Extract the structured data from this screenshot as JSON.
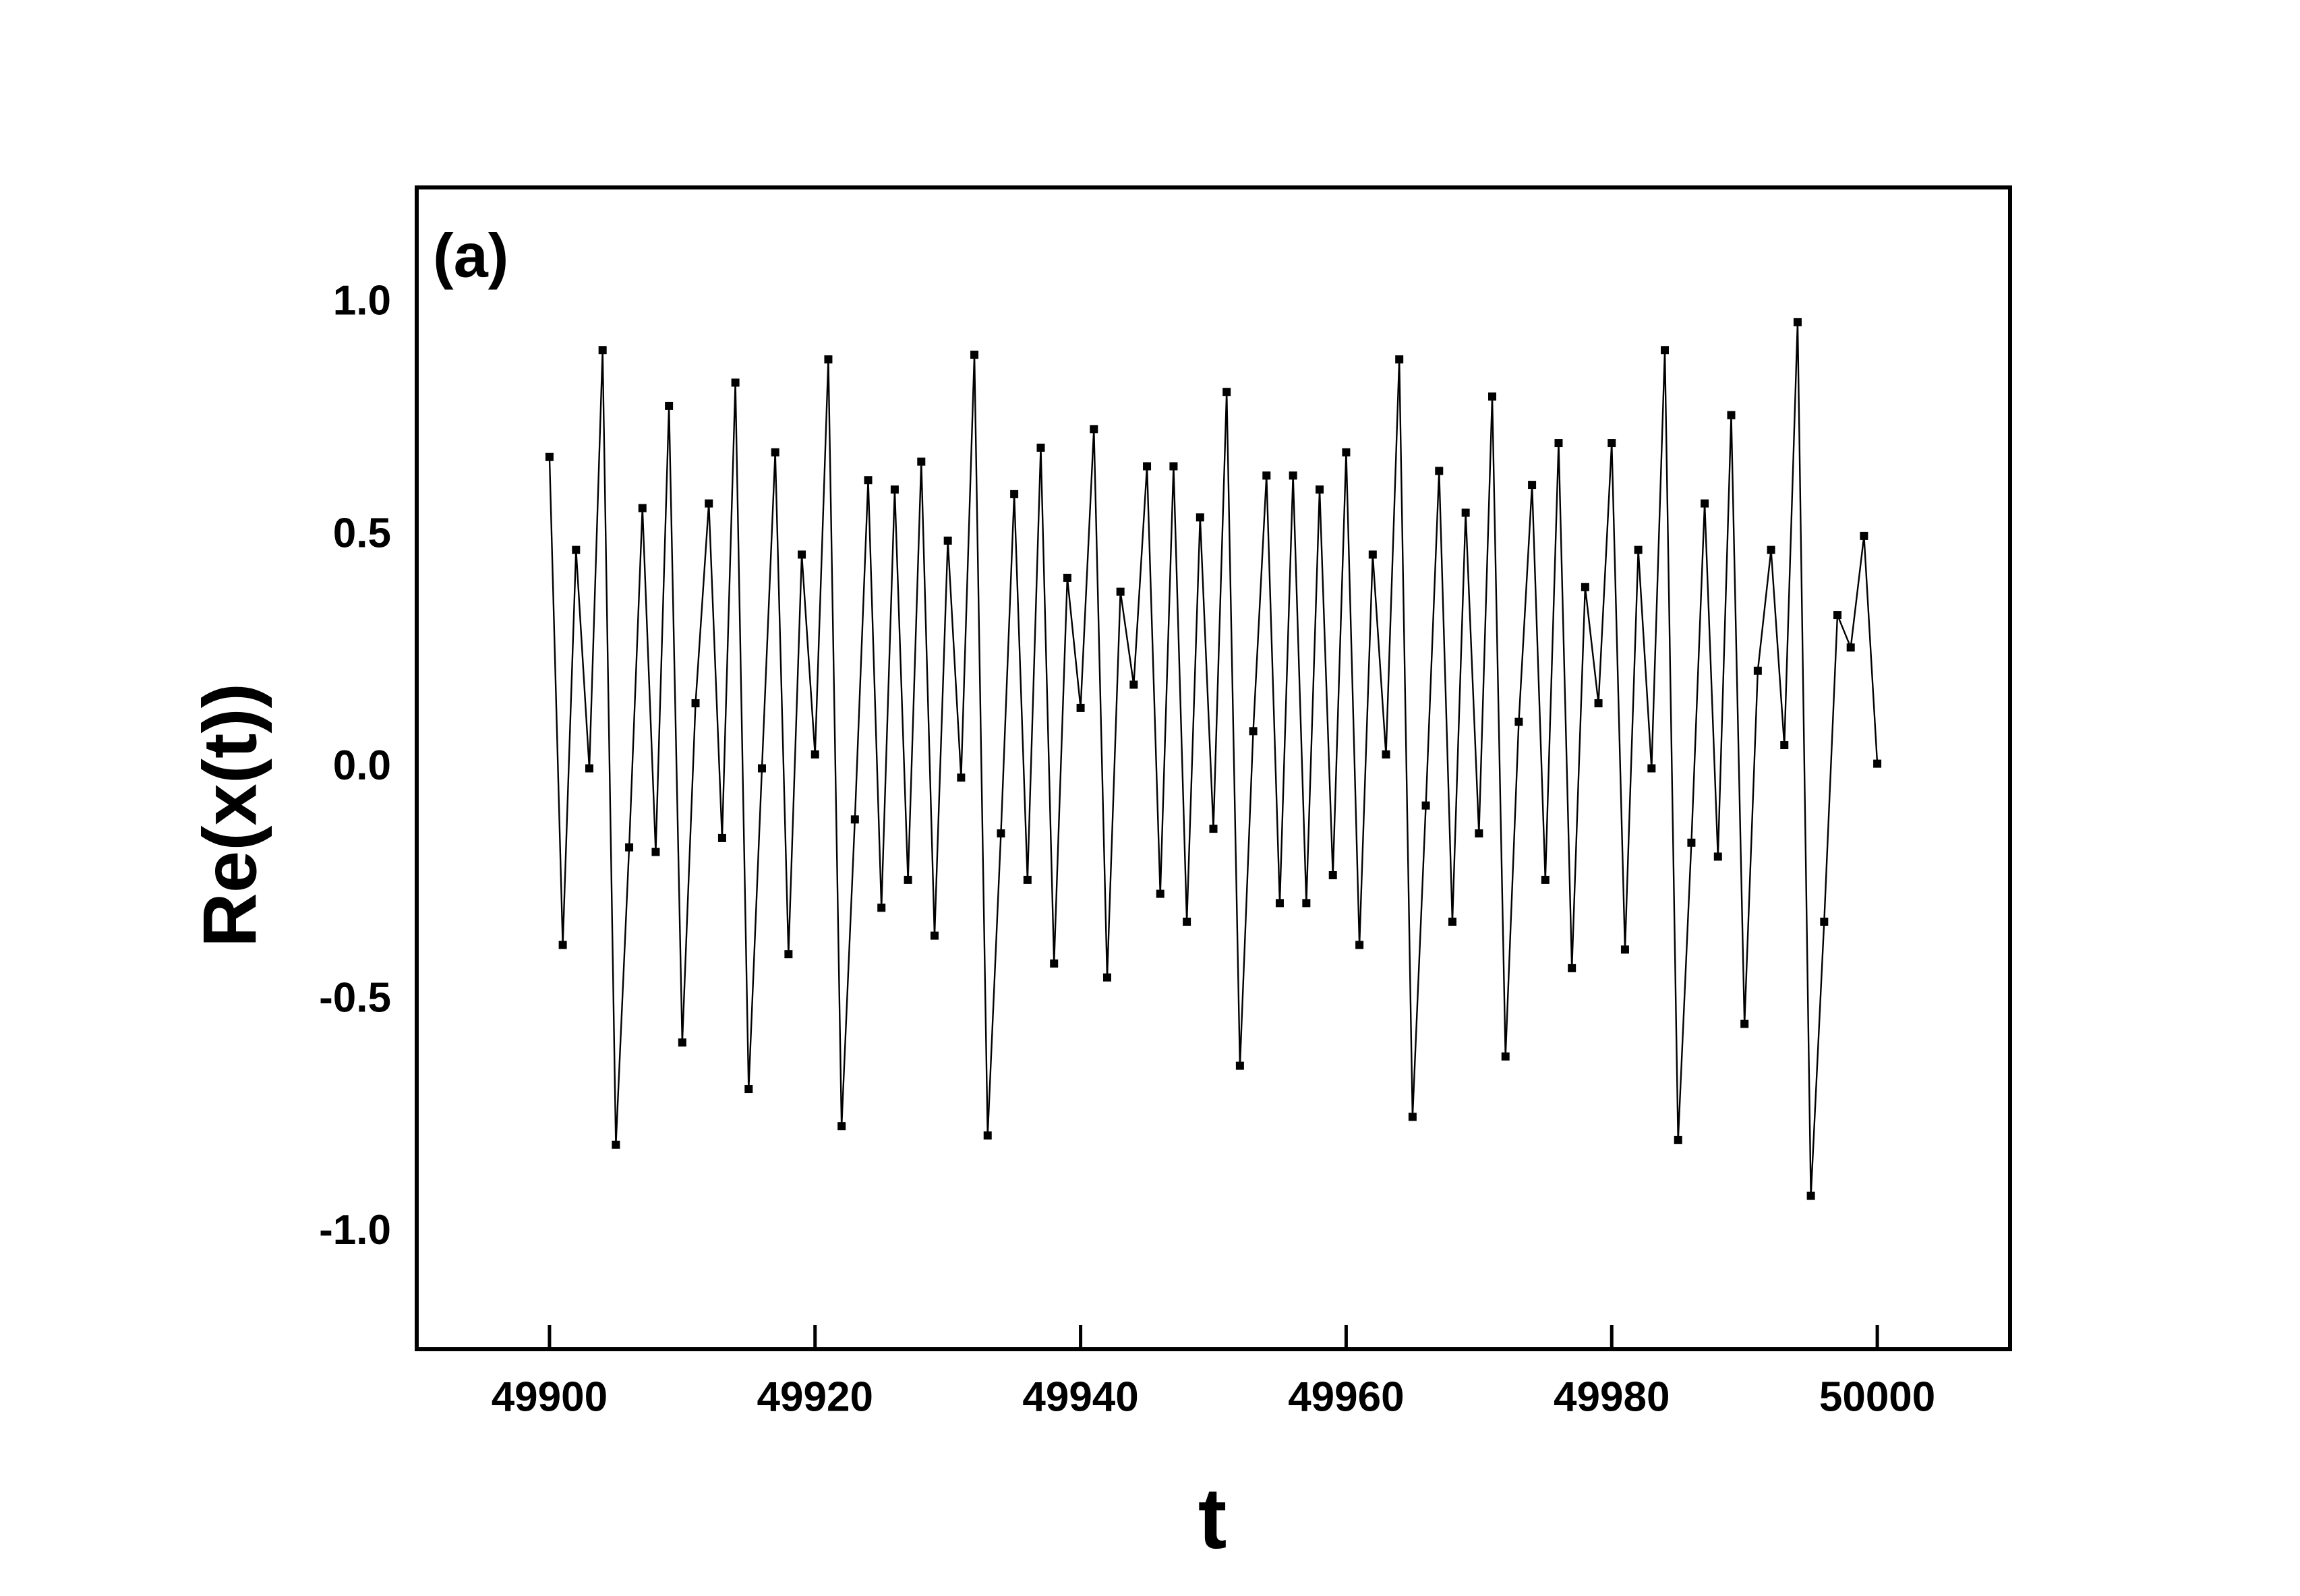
{
  "chart_data": {
    "type": "line",
    "annotation": "(a)",
    "xlabel": "t",
    "ylabel": "Re(x(t))",
    "x": [
      49900,
      49901,
      49902,
      49903,
      49904,
      49905,
      49906,
      49907,
      49908,
      49909,
      49910,
      49911,
      49912,
      49913,
      49914,
      49915,
      49916,
      49917,
      49918,
      49919,
      49920,
      49921,
      49922,
      49923,
      49924,
      49925,
      49926,
      49927,
      49928,
      49929,
      49930,
      49931,
      49932,
      49933,
      49934,
      49935,
      49936,
      49937,
      49938,
      49939,
      49940,
      49941,
      49942,
      49943,
      49944,
      49945,
      49946,
      49947,
      49948,
      49949,
      49950,
      49951,
      49952,
      49953,
      49954,
      49955,
      49956,
      49957,
      49958,
      49959,
      49960,
      49961,
      49962,
      49963,
      49964,
      49965,
      49966,
      49967,
      49968,
      49969,
      49970,
      49971,
      49972,
      49973,
      49974,
      49975,
      49976,
      49977,
      49978,
      49979,
      49980,
      49981,
      49982,
      49983,
      49984,
      49985,
      49986,
      49987,
      49988,
      49989,
      49990,
      49991,
      49992,
      49993,
      49994,
      49995,
      49996,
      49997,
      49998,
      49999,
      50000
    ],
    "series": [
      {
        "color": "#000000",
        "values": [
          0.67,
          -0.38,
          0.47,
          0.0,
          0.9,
          -0.81,
          -0.17,
          0.56,
          -0.18,
          0.78,
          -0.59,
          0.14,
          0.57,
          -0.15,
          0.83,
          -0.69,
          0.0,
          0.68,
          -0.4,
          0.46,
          0.03,
          0.88,
          -0.77,
          -0.11,
          0.62,
          -0.3,
          0.6,
          -0.24,
          0.66,
          -0.36,
          0.49,
          -0.02,
          0.89,
          -0.79,
          -0.14,
          0.59,
          -0.24,
          0.69,
          -0.42,
          0.41,
          0.13,
          0.73,
          -0.45,
          0.38,
          0.18,
          0.65,
          -0.27,
          0.65,
          -0.33,
          0.54,
          -0.13,
          0.81,
          -0.64,
          0.08,
          0.63,
          -0.29,
          0.63,
          -0.29,
          0.6,
          -0.23,
          0.68,
          -0.38,
          0.46,
          0.03,
          0.88,
          -0.75,
          -0.08,
          0.64,
          -0.33,
          0.55,
          -0.14,
          0.8,
          -0.62,
          0.1,
          0.61,
          -0.24,
          0.7,
          -0.43,
          0.39,
          0.14,
          0.7,
          -0.39,
          0.47,
          0.0,
          0.9,
          -0.8,
          -0.16,
          0.57,
          -0.19,
          0.76,
          -0.55,
          0.21,
          0.47,
          0.05,
          0.96,
          -0.92,
          -0.33,
          0.33,
          0.26,
          0.5,
          0.01
        ]
      }
    ],
    "xlim": [
      49890,
      50010
    ],
    "ylim": [
      -1.25,
      1.25
    ],
    "xticks": [
      49900,
      49920,
      49940,
      49960,
      49980,
      50000
    ],
    "yticks": [
      {
        "value": -1,
        "label": "-1.0"
      },
      -0.5,
      {
        "value": 0,
        "label": "0.0"
      },
      0.5,
      {
        "value": 1,
        "label": "1.0"
      }
    ]
  }
}
